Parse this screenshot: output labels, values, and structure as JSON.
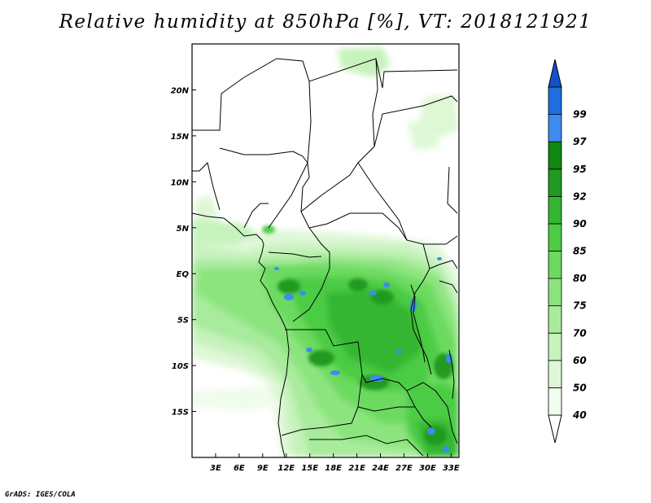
{
  "title": "Relative humidity at 850hPa [%], VT: 2018121921",
  "footer": "GrADS: IGES/COLA",
  "map": {
    "lon_range": [
      0,
      34
    ],
    "lat_range": [
      -20,
      25
    ],
    "lat_ticks": [
      {
        "value": 20,
        "label": "20N"
      },
      {
        "value": 15,
        "label": "15N"
      },
      {
        "value": 10,
        "label": "10N"
      },
      {
        "value": 5,
        "label": "5N"
      },
      {
        "value": 0,
        "label": "EQ"
      },
      {
        "value": -5,
        "label": "5S"
      },
      {
        "value": -10,
        "label": "10S"
      },
      {
        "value": -15,
        "label": "15S"
      }
    ],
    "lon_ticks": [
      {
        "value": 3,
        "label": "3E"
      },
      {
        "value": 6,
        "label": "6E"
      },
      {
        "value": 9,
        "label": "9E"
      },
      {
        "value": 12,
        "label": "12E"
      },
      {
        "value": 15,
        "label": "15E"
      },
      {
        "value": 18,
        "label": "18E"
      },
      {
        "value": 21,
        "label": "21E"
      },
      {
        "value": 24,
        "label": "24E"
      },
      {
        "value": 27,
        "label": "27E"
      },
      {
        "value": 30,
        "label": "30E"
      },
      {
        "value": 33,
        "label": "33E"
      }
    ]
  },
  "colorbar": {
    "levels": [
      {
        "label": "40",
        "color": "#f0fcec"
      },
      {
        "label": "50",
        "color": "#def8d6"
      },
      {
        "label": "60",
        "color": "#c6f2bc"
      },
      {
        "label": "70",
        "color": "#a8eb9c"
      },
      {
        "label": "75",
        "color": "#8ce47e"
      },
      {
        "label": "80",
        "color": "#6cda5e"
      },
      {
        "label": "85",
        "color": "#4ccc44"
      },
      {
        "label": "90",
        "color": "#34b630"
      },
      {
        "label": "92",
        "color": "#209a20"
      },
      {
        "label": "95",
        "color": "#108810"
      },
      {
        "label": "97",
        "color": "#3c8cf0"
      },
      {
        "label": "99",
        "color": "#1e6ee0"
      }
    ],
    "top_color": "#1450c8",
    "bottom_color": "#ffffff"
  }
}
